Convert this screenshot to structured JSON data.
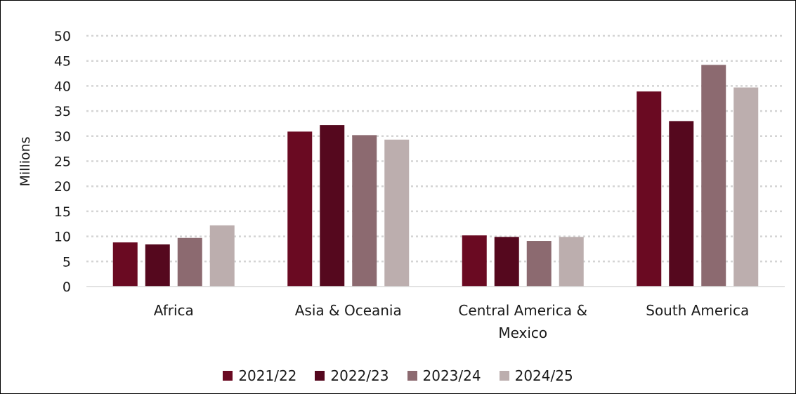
{
  "chart_data": {
    "type": "bar",
    "categories": [
      [
        "Africa"
      ],
      [
        "Asia & Oceania"
      ],
      [
        "Central America &",
        "Mexico"
      ],
      [
        "South America"
      ]
    ],
    "series": [
      {
        "name": "2021/22",
        "color": "#6a0a22",
        "values": [
          8.8,
          30.9,
          10.2,
          38.9
        ]
      },
      {
        "name": "2022/23",
        "color": "#55081e",
        "values": [
          8.4,
          32.2,
          9.9,
          33.0
        ]
      },
      {
        "name": "2023/24",
        "color": "#8c6a70",
        "values": [
          9.7,
          30.2,
          9.1,
          44.2
        ]
      },
      {
        "name": "2024/25",
        "color": "#bcaeae",
        "values": [
          12.2,
          29.3,
          9.9,
          39.7
        ]
      }
    ],
    "ylabel": "Millions",
    "ylim": [
      0,
      50
    ],
    "yticks": [
      "0",
      "5",
      "10",
      "15",
      "20",
      "25",
      "30",
      "35",
      "40",
      "45",
      "50"
    ],
    "grid": true,
    "legend_position": "bottom"
  }
}
